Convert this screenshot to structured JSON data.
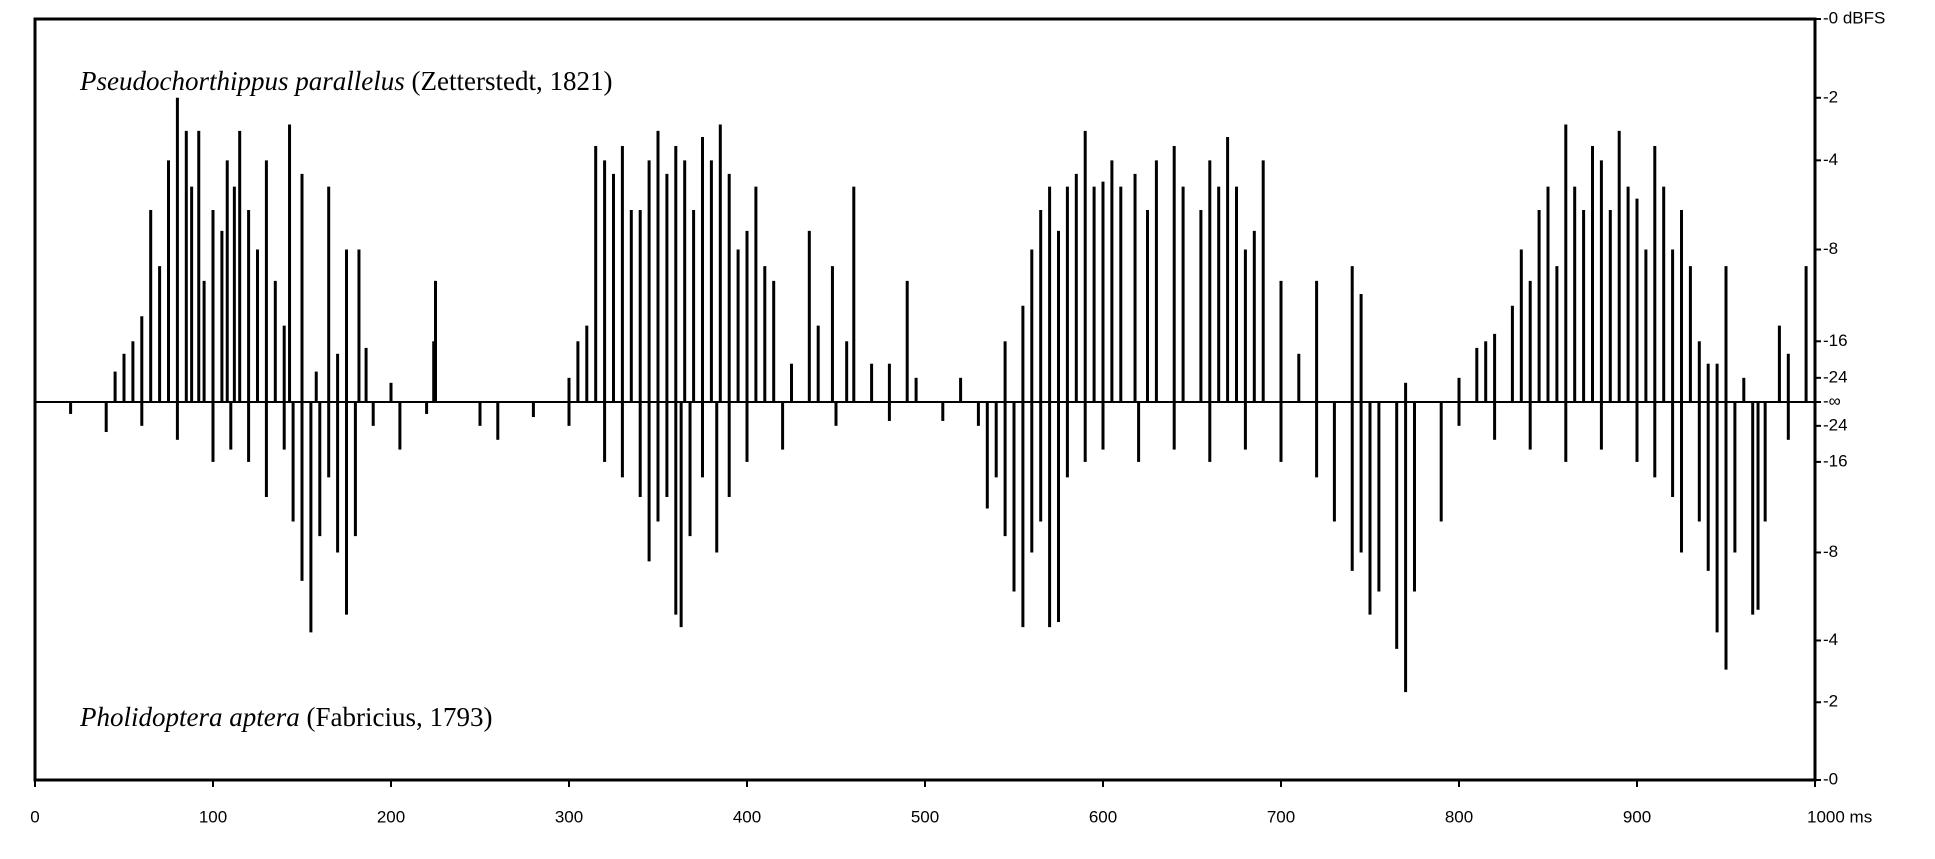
{
  "chart_data": {
    "type": "waveform",
    "scale": "dB amplitude",
    "color": "#000000",
    "xlim": [
      0,
      1000
    ],
    "xticks": [
      0,
      100,
      200,
      300,
      400,
      500,
      600,
      700,
      800,
      900,
      {
        "value": 1000,
        "label": "1000 ms"
      }
    ],
    "channels": [
      {
        "species": "Pseudochorthippus parallelus",
        "author": "(Zetterstedt, 1821)",
        "yticks": [
          {
            "value": 0,
            "label": "-0 dBFS"
          },
          -2,
          -4,
          -8,
          -16,
          -24,
          {
            "value": null,
            "label": "-∞"
          }
        ],
        "x": [
          45,
          50,
          55,
          60,
          65,
          70,
          75,
          80,
          85,
          88,
          92,
          95,
          100,
          105,
          108,
          112,
          115,
          120,
          125,
          130,
          135,
          140,
          143,
          150,
          158,
          165,
          170,
          175,
          182,
          186,
          200,
          224,
          225,
          300,
          305,
          310,
          315,
          320,
          325,
          330,
          335,
          340,
          345,
          350,
          355,
          360,
          365,
          370,
          375,
          380,
          385,
          390,
          395,
          400,
          405,
          410,
          415,
          425,
          435,
          440,
          448,
          456,
          460,
          470,
          480,
          490,
          495,
          520,
          545,
          555,
          560,
          565,
          570,
          575,
          580,
          585,
          590,
          595,
          600,
          605,
          610,
          618,
          625,
          630,
          640,
          645,
          655,
          660,
          665,
          670,
          675,
          680,
          685,
          690,
          700,
          710,
          720,
          740,
          745,
          770,
          800,
          810,
          815,
          820,
          830,
          835,
          840,
          845,
          850,
          855,
          860,
          865,
          870,
          875,
          880,
          885,
          890,
          895,
          900,
          905,
          910,
          915,
          920,
          925,
          930,
          935,
          940,
          945,
          950,
          960,
          980,
          985,
          995
        ],
        "values": [
          -22,
          -18,
          -16,
          -13,
          -6,
          -9,
          -4,
          -2,
          -3,
          -5,
          -3,
          -10,
          -6,
          -7,
          -4,
          -5,
          -3,
          -6,
          -8,
          -4,
          -10,
          -14,
          -2.8,
          -4.5,
          -22,
          -5,
          -18,
          -8,
          -8,
          -17,
          -26,
          -16,
          -10,
          -24,
          -16,
          -14,
          -3.5,
          -4,
          -4.5,
          -3.5,
          -6,
          -6,
          -4,
          -3,
          -4.5,
          -3.5,
          -4,
          -6,
          -3.2,
          -4,
          -2.8,
          -4.5,
          -8,
          -7,
          -5,
          -9,
          -10,
          -20,
          -7,
          -14,
          -9,
          -16,
          -5,
          -20,
          -20,
          -10,
          -24,
          -24,
          -16,
          -12,
          -8,
          -6,
          -5,
          -7,
          -5,
          -4.5,
          -3,
          -5,
          -4.8,
          -4,
          -5,
          -4.5,
          -6,
          -4,
          -3.5,
          -5,
          -6,
          -4,
          -5,
          -3.2,
          -5,
          -8,
          -7,
          -4,
          -10,
          -18,
          -10,
          -9,
          -11,
          -26,
          -24,
          -17,
          -16,
          -15,
          -12,
          -8,
          -10,
          -6,
          -5,
          -9,
          -2.8,
          -5,
          -6,
          -3.5,
          -4,
          -6,
          -3,
          -5,
          -5.5,
          -8,
          -3.5,
          -5,
          -8,
          -6,
          -9,
          -16,
          -20,
          -20,
          -9,
          -24,
          -14,
          -18,
          -9
        ]
      },
      {
        "species": "Pholidoptera aptera",
        "author": "(Fabricius, 1793)",
        "yticks": [
          -24,
          -16,
          -8,
          -4,
          -2,
          {
            "value": 0,
            "label": "-0"
          }
        ],
        "x": [
          20,
          40,
          60,
          80,
          100,
          110,
          120,
          130,
          140,
          145,
          150,
          155,
          160,
          165,
          170,
          175,
          180,
          190,
          205,
          220,
          250,
          260,
          280,
          300,
          320,
          330,
          340,
          345,
          350,
          355,
          360,
          363,
          368,
          375,
          383,
          390,
          400,
          420,
          450,
          480,
          510,
          530,
          535,
          540,
          545,
          550,
          555,
          560,
          565,
          570,
          575,
          580,
          590,
          600,
          620,
          640,
          660,
          680,
          700,
          720,
          730,
          740,
          745,
          750,
          755,
          765,
          770,
          775,
          790,
          800,
          820,
          840,
          860,
          880,
          900,
          910,
          920,
          925,
          935,
          940,
          945,
          950,
          955,
          965,
          968,
          972,
          985
        ],
        "values": [
          -30,
          -22,
          -24,
          -20,
          -16,
          -18,
          -16,
          -12,
          -18,
          -10,
          -6.5,
          -4.3,
          -9,
          -14,
          -8,
          -5,
          -9,
          -24,
          -18,
          -30,
          -24,
          -20,
          -28,
          -24,
          -16,
          -14,
          -12,
          -7.5,
          -10,
          -12,
          -5,
          -4.5,
          -9,
          -14,
          -8,
          -12,
          -16,
          -18,
          -24,
          -26,
          -26,
          -24,
          -11,
          -14,
          -9,
          -6,
          -4.5,
          -8,
          -10,
          -4.5,
          -4.7,
          -14,
          -16,
          -18,
          -16,
          -18,
          -16,
          -18,
          -16,
          -14,
          -10,
          -7,
          -8,
          -5,
          -6,
          -3.7,
          -2.3,
          -6,
          -10,
          -24,
          -20,
          -18,
          -16,
          -18,
          -16,
          -14,
          -12,
          -8,
          -10,
          -7,
          -4.3,
          -3,
          -8,
          -5,
          -5.2,
          -10,
          -20
        ]
      }
    ]
  }
}
